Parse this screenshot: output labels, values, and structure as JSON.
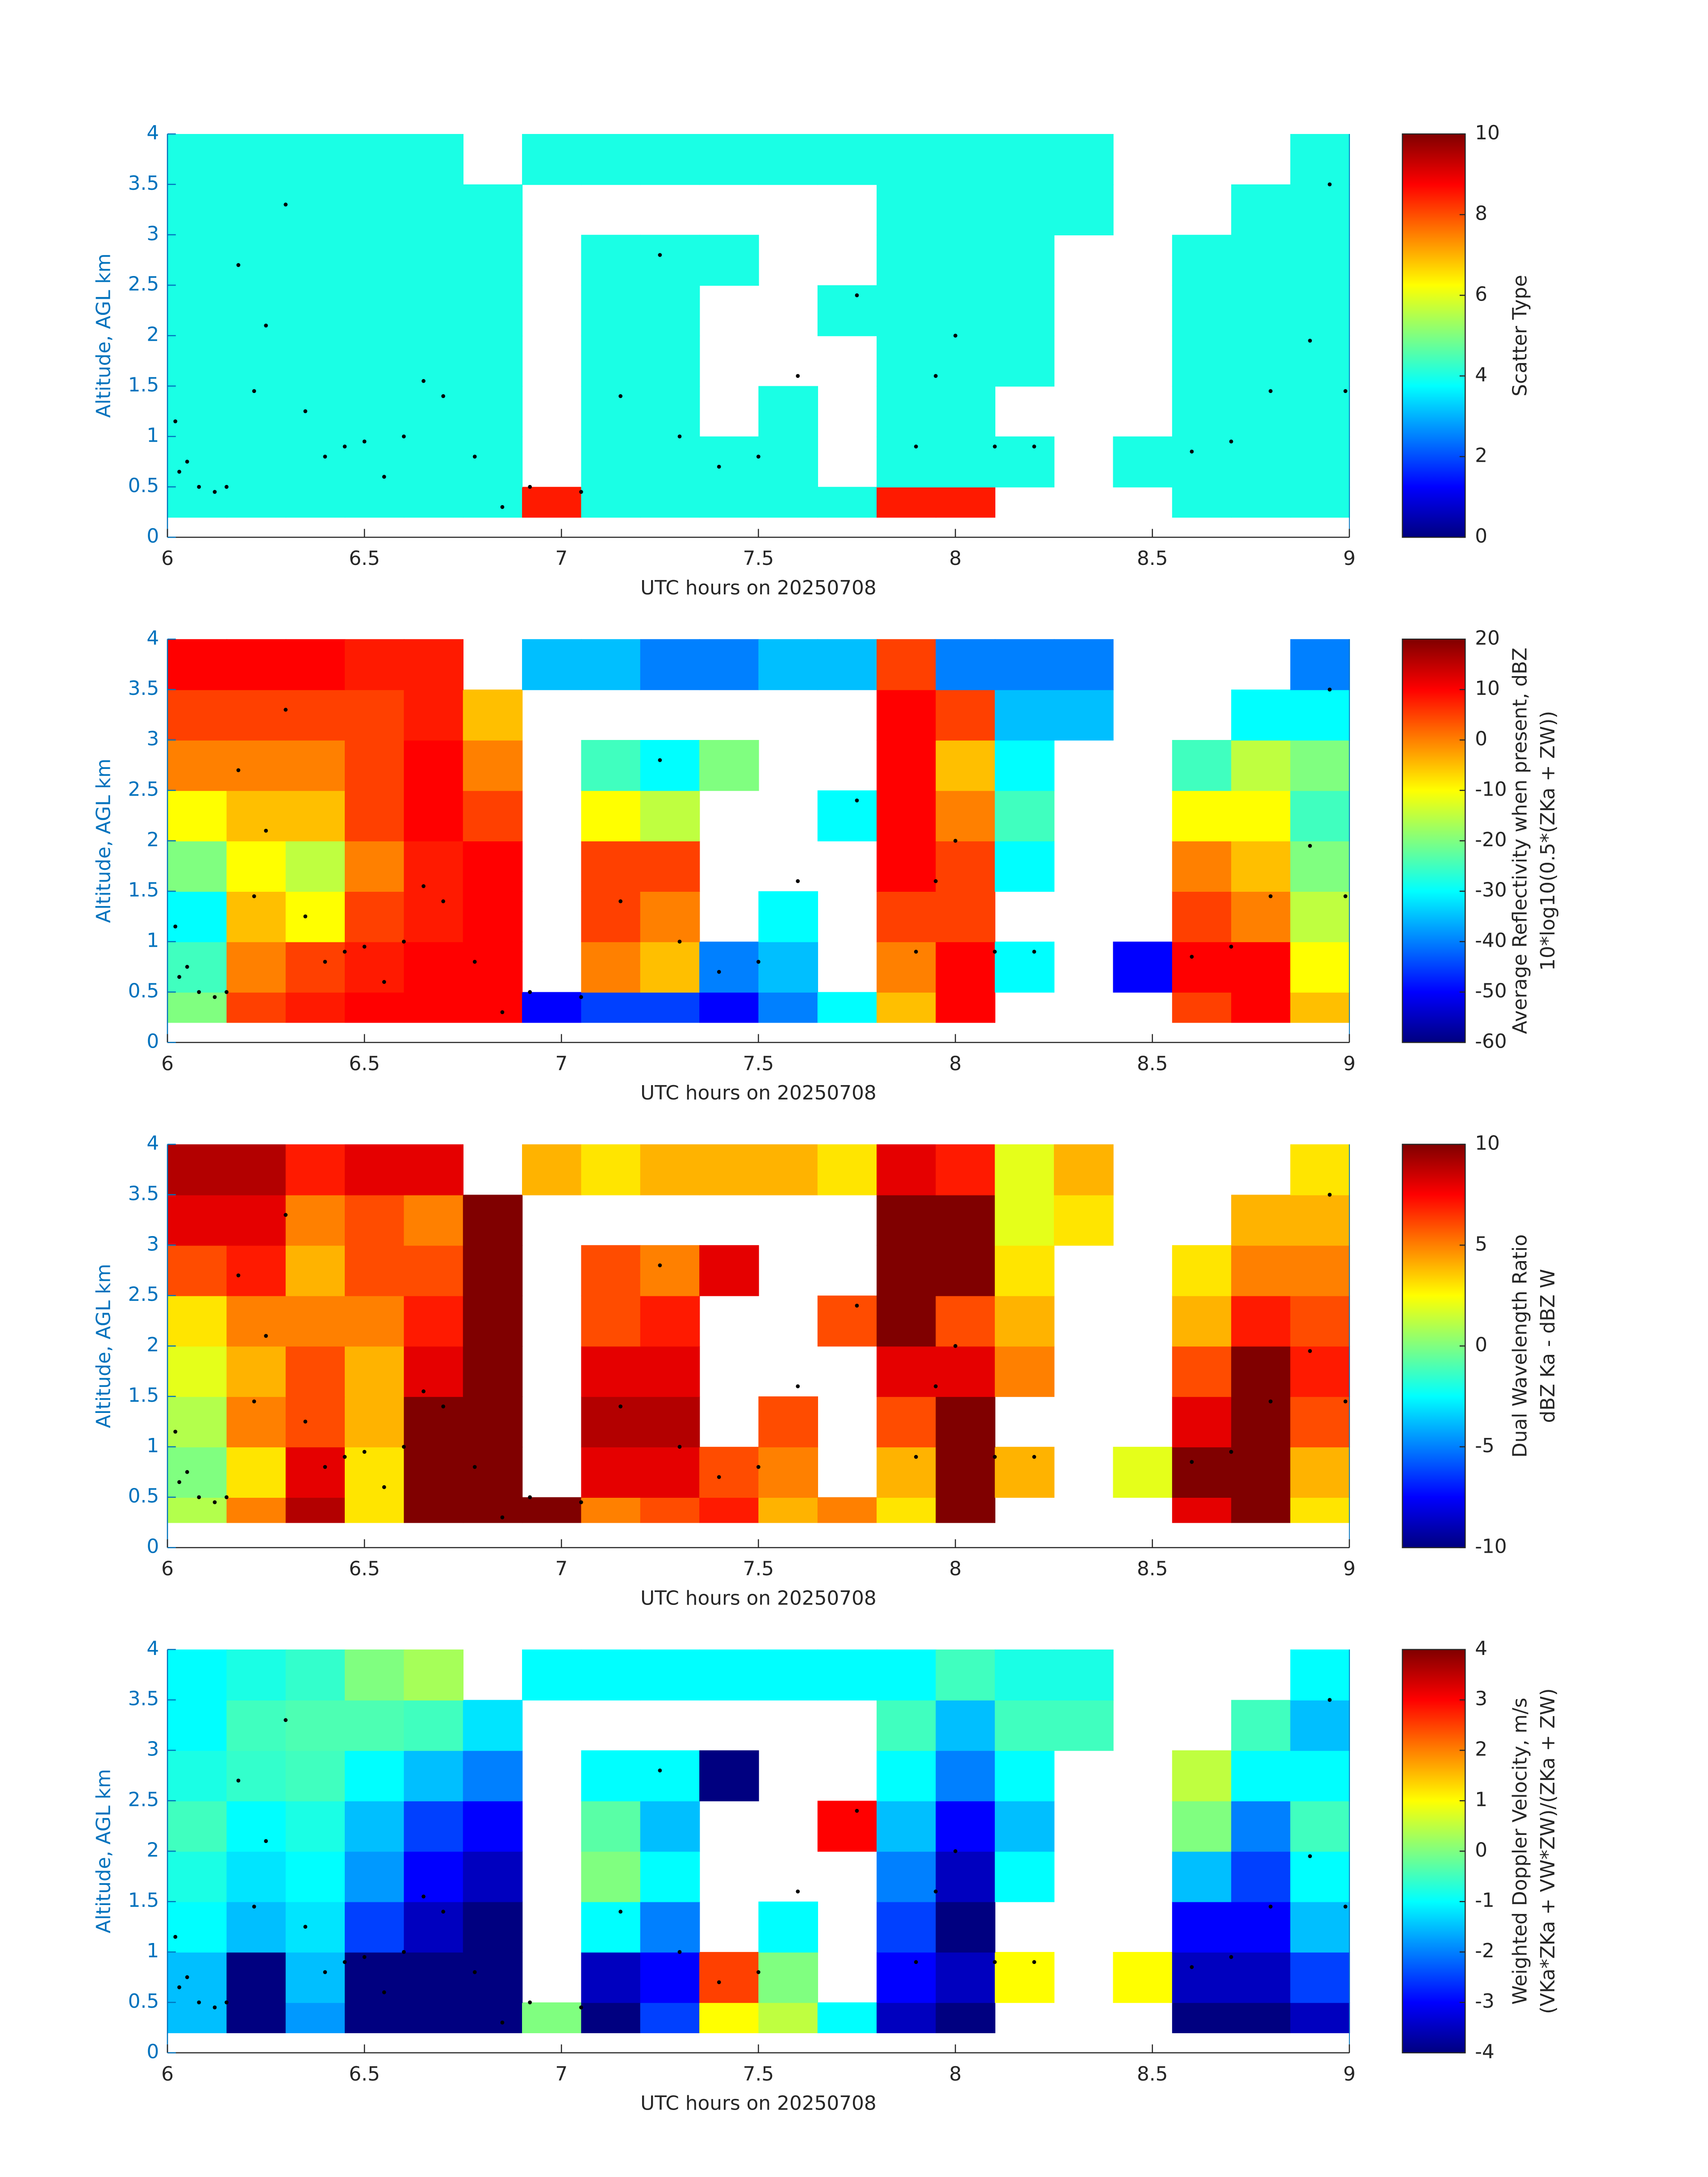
{
  "chart_data": [
    {
      "type": "heatmap",
      "x_label": "UTC hours on 20250708",
      "y_label": "Altitude, AGL km",
      "colorbar_label": [
        "Scatter Type"
      ],
      "xlim": [
        6,
        9
      ],
      "xticks": [
        6,
        6.5,
        7,
        7.5,
        8,
        8.5,
        9
      ],
      "ylim": [
        0,
        4
      ],
      "yticks": [
        0,
        0.5,
        1,
        1.5,
        2,
        2.5,
        3,
        3.5,
        4
      ],
      "colormap": "jet",
      "clim": [
        0,
        10
      ],
      "cticks": [
        0,
        2,
        4,
        6,
        8,
        10
      ],
      "x_edges": [
        6,
        6.15,
        6.3,
        6.45,
        6.6,
        6.75,
        6.9,
        7.05,
        7.2,
        7.35,
        7.5,
        7.65,
        7.8,
        7.95,
        8.1,
        8.25,
        8.4,
        8.55,
        8.7,
        8.85,
        9
      ],
      "y_edges": [
        0.2,
        0.5,
        1,
        1.5,
        2,
        2.5,
        3,
        3.5,
        4
      ],
      "z": [
        [
          4,
          4,
          4,
          4,
          4,
          4,
          8.5,
          4,
          4,
          4,
          4,
          4,
          8.5,
          8.5,
          null,
          null,
          null,
          4,
          4,
          4
        ],
        [
          4,
          4,
          4,
          4,
          4,
          4,
          null,
          4,
          4,
          4,
          4,
          null,
          4,
          4,
          4,
          null,
          4,
          4,
          4,
          4
        ],
        [
          4,
          4,
          4,
          4,
          4,
          4,
          null,
          4,
          4,
          null,
          4,
          null,
          4,
          4,
          null,
          null,
          null,
          4,
          4,
          4
        ],
        [
          4,
          4,
          4,
          4,
          4,
          4,
          null,
          4,
          4,
          null,
          null,
          null,
          4,
          4,
          4,
          null,
          null,
          4,
          4,
          4
        ],
        [
          4,
          4,
          4,
          4,
          4,
          4,
          null,
          4,
          4,
          null,
          null,
          4,
          4,
          4,
          4,
          null,
          null,
          4,
          4,
          4
        ],
        [
          4,
          4,
          4,
          4,
          4,
          4,
          null,
          4,
          4,
          4,
          null,
          null,
          4,
          4,
          4,
          null,
          null,
          4,
          4,
          4
        ],
        [
          4,
          4,
          4,
          4,
          4,
          4,
          null,
          null,
          null,
          null,
          null,
          null,
          4,
          4,
          4,
          4,
          null,
          null,
          4,
          4
        ],
        [
          4,
          4,
          4,
          4,
          4,
          null,
          4,
          4,
          4,
          4,
          4,
          4,
          4,
          4,
          4,
          4,
          null,
          null,
          null,
          4
        ]
      ],
      "points": {
        "color": "#000000",
        "x": [
          6.02,
          6.03,
          6.05,
          6.08,
          6.12,
          6.15,
          6.18,
          6.22,
          6.25,
          6.3,
          6.35,
          6.4,
          6.45,
          6.5,
          6.55,
          6.6,
          6.65,
          6.7,
          6.78,
          6.85,
          6.92,
          7.05,
          7.15,
          7.25,
          7.3,
          7.4,
          7.5,
          7.6,
          7.75,
          7.9,
          7.95,
          8.0,
          8.1,
          8.2,
          8.6,
          8.7,
          8.8,
          8.9,
          8.95,
          8.99
        ],
        "y": [
          1.15,
          0.65,
          0.75,
          0.5,
          0.45,
          0.5,
          2.7,
          1.45,
          2.1,
          3.3,
          1.25,
          0.8,
          0.9,
          0.95,
          0.6,
          1.0,
          1.55,
          1.4,
          0.8,
          0.3,
          0.5,
          0.45,
          1.4,
          2.8,
          1.0,
          0.7,
          0.8,
          1.6,
          2.4,
          0.9,
          1.6,
          2.0,
          0.9,
          0.9,
          0.85,
          0.95,
          1.45,
          1.95,
          3.5,
          1.45
        ]
      }
    },
    {
      "type": "heatmap",
      "x_label": "UTC hours on 20250708",
      "y_label": "Altitude, AGL km",
      "colorbar_label": [
        "Average Reflectivity when present, dBZ",
        "10*log10(0.5*(ZKa + ZW))"
      ],
      "xlim": [
        6,
        9
      ],
      "xticks": [
        6,
        6.5,
        7,
        7.5,
        8,
        8.5,
        9
      ],
      "ylim": [
        0,
        4
      ],
      "yticks": [
        0,
        0.5,
        1,
        1.5,
        2,
        2.5,
        3,
        3.5,
        4
      ],
      "colormap": "jet",
      "clim": [
        -60,
        20
      ],
      "cticks": [
        -60,
        -50,
        -40,
        -30,
        -20,
        -10,
        0,
        10,
        20
      ],
      "x_edges": [
        6,
        6.15,
        6.3,
        6.45,
        6.6,
        6.75,
        6.9,
        7.05,
        7.2,
        7.35,
        7.5,
        7.65,
        7.8,
        7.95,
        8.1,
        8.25,
        8.4,
        8.55,
        8.7,
        8.85,
        9
      ],
      "y_edges": [
        0.2,
        0.5,
        1,
        1.5,
        2,
        2.5,
        3,
        3.5,
        4
      ],
      "z": [
        [
          -20,
          5,
          8,
          10,
          10,
          10,
          -50,
          -45,
          -45,
          -50,
          -40,
          -30,
          -5,
          10,
          null,
          null,
          null,
          5,
          10,
          -5
        ],
        [
          -25,
          0,
          5,
          8,
          10,
          10,
          null,
          0,
          -5,
          -40,
          -35,
          null,
          0,
          10,
          -30,
          null,
          -50,
          10,
          10,
          -10
        ],
        [
          -30,
          -5,
          -10,
          5,
          8,
          10,
          null,
          5,
          0,
          null,
          -30,
          null,
          5,
          5,
          null,
          null,
          null,
          5,
          0,
          -15
        ],
        [
          -20,
          -10,
          -15,
          0,
          8,
          10,
          null,
          5,
          5,
          null,
          null,
          null,
          10,
          5,
          -30,
          null,
          null,
          0,
          -5,
          -20
        ],
        [
          -10,
          -5,
          -5,
          5,
          10,
          5,
          null,
          -10,
          -15,
          null,
          null,
          -30,
          10,
          0,
          -25,
          null,
          null,
          -10,
          -10,
          -25
        ],
        [
          0,
          0,
          0,
          5,
          10,
          0,
          null,
          -25,
          -30,
          -20,
          null,
          null,
          10,
          -5,
          -30,
          null,
          null,
          -25,
          -15,
          -20
        ],
        [
          5,
          5,
          5,
          5,
          8,
          -5,
          null,
          null,
          null,
          null,
          null,
          null,
          10,
          5,
          -35,
          -35,
          null,
          null,
          -30,
          -30
        ],
        [
          10,
          10,
          10,
          8,
          8,
          null,
          -35,
          -35,
          -40,
          -40,
          -35,
          -35,
          5,
          -40,
          -40,
          -40,
          null,
          null,
          null,
          -40
        ]
      ]
    },
    {
      "type": "heatmap",
      "x_label": "UTC hours on 20250708",
      "y_label": "Altitude, AGL km",
      "colorbar_label": [
        "Dual Wavelength Ratio",
        "dBZ Ka - dBZ W"
      ],
      "xlim": [
        6,
        9
      ],
      "xticks": [
        6,
        6.5,
        7,
        7.5,
        8,
        8.5,
        9
      ],
      "ylim": [
        0,
        4
      ],
      "yticks": [
        0,
        0.5,
        1,
        1.5,
        2,
        2.5,
        3,
        3.5,
        4
      ],
      "colormap": "jet",
      "clim": [
        -10,
        10
      ],
      "cticks": [
        -10,
        -5,
        0,
        5,
        10
      ],
      "x_edges": [
        6,
        6.15,
        6.3,
        6.45,
        6.6,
        6.75,
        6.9,
        7.05,
        7.2,
        7.35,
        7.5,
        7.65,
        7.8,
        7.95,
        8.1,
        8.25,
        8.4,
        8.55,
        8.7,
        8.85,
        9
      ],
      "y_edges": [
        0.25,
        0.5,
        1,
        1.5,
        2,
        2.5,
        3,
        3.5,
        4
      ],
      "z": [
        [
          1,
          5,
          9,
          3,
          10,
          10,
          10,
          5,
          6,
          7,
          4,
          5,
          3,
          10,
          null,
          null,
          null,
          8,
          10,
          3
        ],
        [
          0,
          3,
          8,
          3,
          10,
          10,
          null,
          8,
          8,
          6,
          5,
          null,
          4,
          10,
          4,
          null,
          2,
          10,
          10,
          4
        ],
        [
          1,
          5,
          6,
          4,
          10,
          10,
          null,
          9,
          9,
          null,
          6,
          null,
          6,
          10,
          null,
          null,
          null,
          8,
          10,
          6
        ],
        [
          2,
          4,
          6,
          4,
          8,
          10,
          null,
          8,
          8,
          null,
          null,
          null,
          8,
          8,
          5,
          null,
          null,
          6,
          10,
          7
        ],
        [
          3,
          5,
          5,
          5,
          7,
          10,
          null,
          6,
          7,
          null,
          null,
          6,
          10,
          6,
          4,
          null,
          null,
          4,
          7,
          6
        ],
        [
          6,
          7,
          4,
          6,
          6,
          10,
          null,
          6,
          5,
          8,
          null,
          null,
          10,
          10,
          3,
          null,
          null,
          3,
          5,
          5
        ],
        [
          8,
          8,
          5,
          6,
          5,
          10,
          null,
          null,
          null,
          null,
          null,
          null,
          10,
          10,
          2,
          3,
          null,
          null,
          4,
          4
        ],
        [
          9,
          9,
          7,
          8,
          8,
          null,
          4,
          3,
          4,
          4,
          4,
          3,
          8,
          7,
          2,
          4,
          null,
          null,
          null,
          3
        ]
      ]
    },
    {
      "type": "heatmap",
      "x_label": "UTC hours on 20250708",
      "y_label": "Altitude, AGL km",
      "colorbar_label": [
        "Weighted Doppler Velocity, m/s",
        "(VKa*ZKa + VW*ZW)/(ZKa + ZW)"
      ],
      "xlim": [
        6,
        9
      ],
      "xticks": [
        6,
        6.5,
        7,
        7.5,
        8,
        8.5,
        9
      ],
      "ylim": [
        0,
        4
      ],
      "yticks": [
        0,
        0.5,
        1,
        1.5,
        2,
        2.5,
        3,
        3.5,
        4
      ],
      "colormap": "jet",
      "clim": [
        -4,
        4
      ],
      "cticks": [
        -4,
        -3,
        -2,
        -1,
        0,
        1,
        2,
        3,
        4
      ],
      "x_edges": [
        6,
        6.15,
        6.3,
        6.45,
        6.6,
        6.75,
        6.9,
        7.05,
        7.2,
        7.35,
        7.5,
        7.65,
        7.8,
        7.95,
        8.1,
        8.25,
        8.4,
        8.55,
        8.7,
        8.85,
        9
      ],
      "y_edges": [
        0.2,
        0.5,
        1,
        1.5,
        2,
        2.5,
        3,
        3.5,
        4
      ],
      "z": [
        [
          -1.5,
          -4,
          -1.8,
          -4,
          -4,
          -4,
          0,
          -4,
          -2.5,
          1,
          0.5,
          -1,
          -3.5,
          -4,
          null,
          null,
          null,
          -4,
          -4,
          -3.5
        ],
        [
          -1.5,
          -4,
          -1.5,
          -4,
          -4,
          -4,
          null,
          -3.5,
          -3,
          2.5,
          0,
          null,
          -3,
          -3.5,
          1,
          null,
          1,
          -3.5,
          -3.5,
          -2.5
        ],
        [
          -1,
          -1.5,
          -1.2,
          -2.5,
          -3.5,
          -4,
          null,
          -1,
          -2,
          null,
          -1,
          null,
          -2.5,
          -4,
          null,
          null,
          null,
          -3,
          -3,
          -1.5
        ],
        [
          -0.8,
          -1.2,
          -1,
          -1.8,
          -3,
          -3.5,
          null,
          0,
          -1,
          null,
          null,
          null,
          -2,
          -3.5,
          -1,
          null,
          null,
          -1.5,
          -2.5,
          -1
        ],
        [
          -0.5,
          -1,
          -0.8,
          -1.5,
          -2.5,
          -3,
          null,
          -0.3,
          -1.5,
          null,
          null,
          3,
          -1.5,
          -3,
          -1.5,
          null,
          null,
          0,
          -2,
          -0.5
        ],
        [
          -0.8,
          -0.6,
          -0.5,
          -1,
          -1.5,
          -2,
          null,
          -1,
          -1,
          -4,
          null,
          null,
          -1,
          -2,
          -1,
          null,
          null,
          0.5,
          -1,
          -1
        ],
        [
          -1,
          -0.5,
          -0.4,
          -0.4,
          -0.5,
          -1.2,
          null,
          null,
          null,
          null,
          null,
          null,
          -0.5,
          -1.5,
          -0.5,
          -0.5,
          null,
          null,
          -0.5,
          -1.5
        ],
        [
          -1,
          -0.8,
          -0.6,
          0,
          0.3,
          null,
          -1,
          -1,
          -1,
          -1,
          -1,
          -1,
          -1,
          -0.5,
          -0.8,
          -0.8,
          null,
          null,
          null,
          -1
        ]
      ]
    }
  ]
}
